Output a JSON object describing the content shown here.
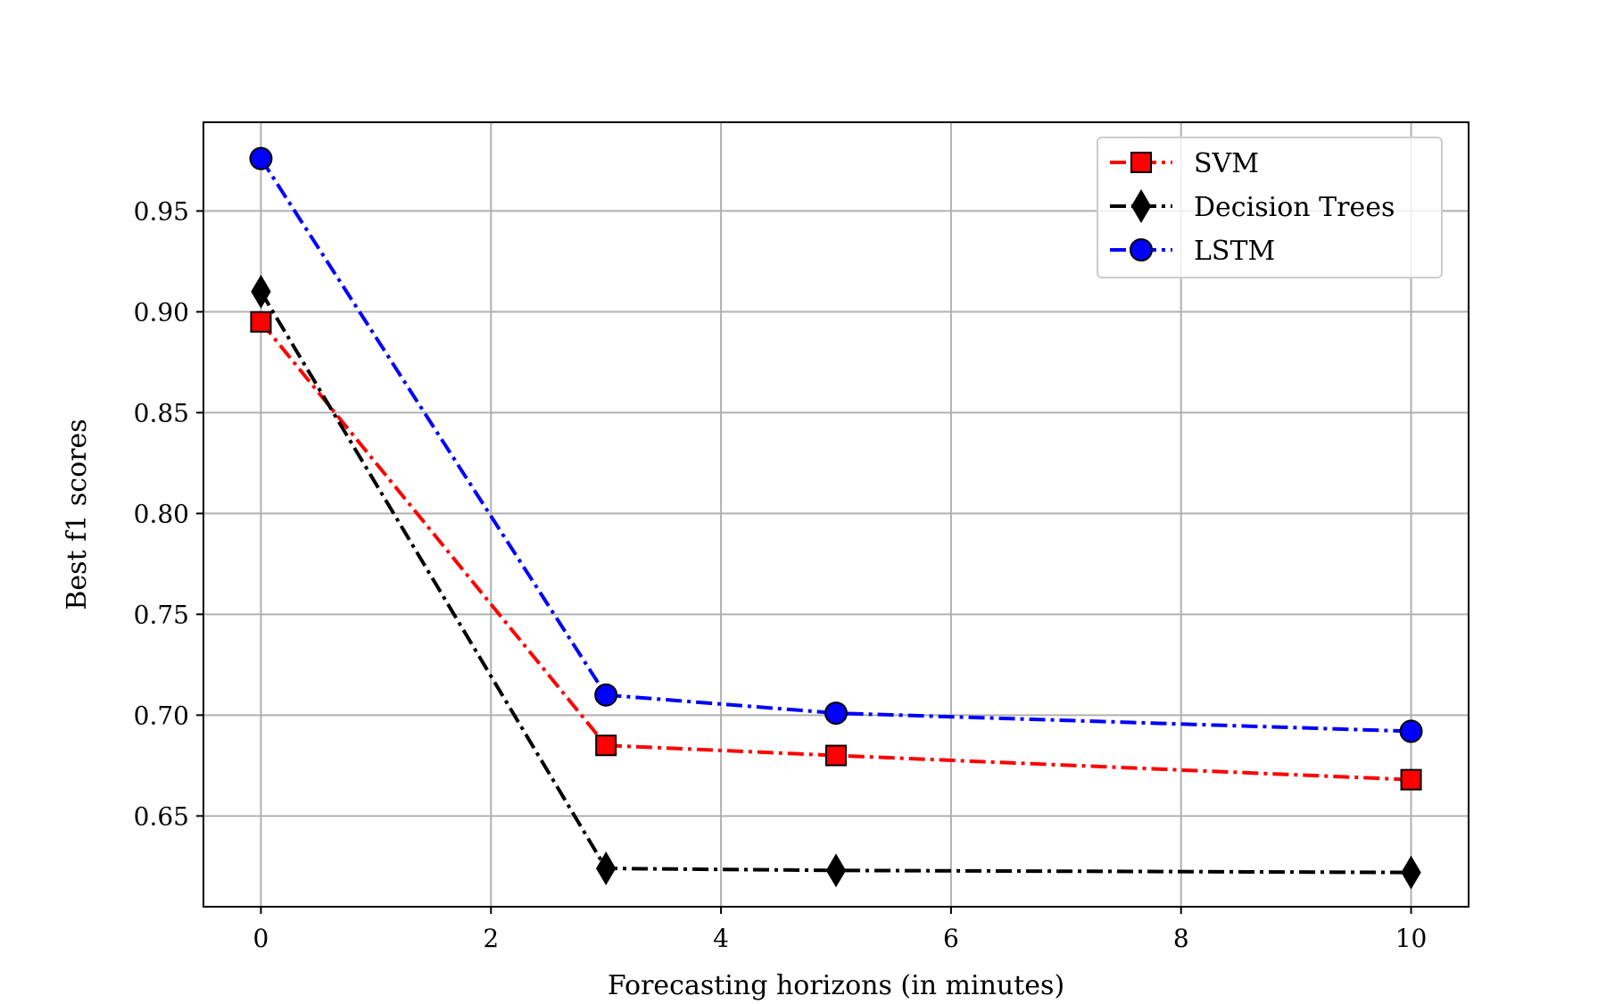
{
  "chart_data": {
    "type": "line",
    "title": "",
    "xlabel": "Forecasting horizons (in minutes)",
    "ylabel": "Best f1 scores",
    "x": [
      0,
      3,
      5,
      10
    ],
    "xlim": [
      -0.5,
      10.5
    ],
    "ylim": [
      0.605,
      0.994
    ],
    "xticks": [
      0,
      2,
      4,
      6,
      8,
      10
    ],
    "xtick_labels": [
      "0",
      "2",
      "4",
      "6",
      "8",
      "10"
    ],
    "yticks": [
      0.65,
      0.7,
      0.75,
      0.8,
      0.85,
      0.9,
      0.95
    ],
    "ytick_labels": [
      "0.65",
      "0.70",
      "0.75",
      "0.80",
      "0.85",
      "0.90",
      "0.95"
    ],
    "grid": true,
    "legend_position": "top-right",
    "series": [
      {
        "name": "SVM",
        "values": [
          0.895,
          0.685,
          0.68,
          0.668
        ],
        "color": "#ff0000",
        "marker": "square",
        "marker_color": "#ff0000"
      },
      {
        "name": "Decision Trees",
        "values": [
          0.91,
          0.624,
          0.623,
          0.622
        ],
        "color": "#000000",
        "marker": "thin-diamond",
        "marker_color": "#000000"
      },
      {
        "name": "LSTM",
        "values": [
          0.976,
          0.71,
          0.701,
          0.692
        ],
        "color": "#0000ff",
        "marker": "circle",
        "marker_color": "#0000ff"
      }
    ]
  }
}
